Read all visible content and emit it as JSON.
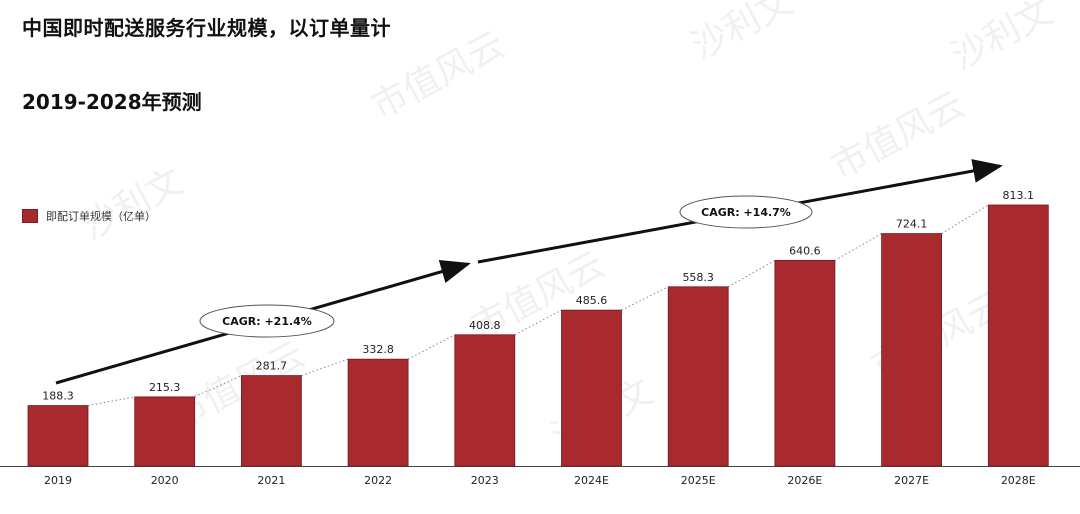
{
  "header": {
    "title": "中国即时配送服务行业规模，以订单量计",
    "subtitle": "2019-2028年预测"
  },
  "legend": {
    "label": "即配订单规模（亿单）",
    "color": "#A82A2F"
  },
  "watermarks": [
    "市值风云",
    "沙利文"
  ],
  "chart_data": {
    "type": "bar",
    "categories": [
      "2019",
      "2020",
      "2021",
      "2022",
      "2023",
      "2024E",
      "2025E",
      "2026E",
      "2027E",
      "2028E"
    ],
    "series": [
      {
        "name": "即配订单规模（亿单）",
        "values": [
          188.3,
          215.3,
          281.7,
          332.8,
          408.8,
          485.6,
          558.3,
          640.6,
          724.1,
          813.1
        ]
      }
    ],
    "data_labels": [
      "188.3",
      "215.3",
      "281.7",
      "332.8",
      "408.8",
      "485.6",
      "558.3",
      "640.6",
      "724.1",
      "813.1"
    ],
    "annotations": [
      {
        "text": "CAGR: +21.4%",
        "from": "2019",
        "to": "2023"
      },
      {
        "text": "CAGR: +14.7%",
        "from": "2024E",
        "to": "2028E"
      }
    ],
    "ylim": [
      0,
      813.1
    ],
    "grid": false,
    "legend_position": "left"
  }
}
